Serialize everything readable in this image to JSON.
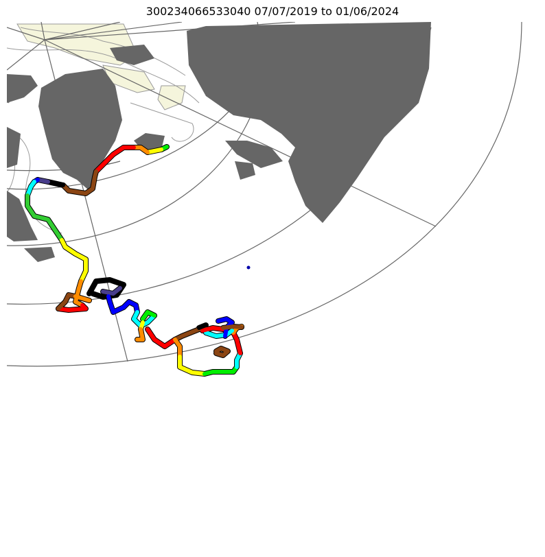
{
  "title": "300234066533040  07/07/2019 to 01/06/2024",
  "map": {
    "projection": "polar stereographic",
    "land_color": "#666666",
    "ice_color": "#f5f5dc",
    "grid_color": "#666666",
    "contour_color": "#999999",
    "track_colors": [
      "#00ee00",
      "#ffff00",
      "#ff8c00",
      "#ff0000",
      "#8b4513",
      "#000000",
      "#483d8b",
      "#0000ff",
      "#00ffff",
      "#32cd32"
    ]
  }
}
